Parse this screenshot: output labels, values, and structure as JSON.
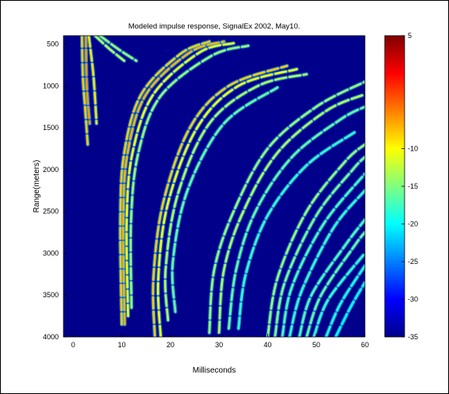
{
  "chart_data": {
    "type": "heatmap",
    "title": "Modeled impulse response, SignalEx 2002, May10.",
    "xlabel": "Milliseconds",
    "ylabel": "Range(meters)",
    "xlim": [
      -2,
      60
    ],
    "ylim": [
      400,
      4000
    ],
    "y_direction": "reversed",
    "x_ticks": [
      0,
      10,
      20,
      30,
      40,
      50,
      60
    ],
    "y_ticks": [
      500,
      1000,
      1500,
      2000,
      2500,
      3000,
      3500,
      4000
    ],
    "background_color": "#00008b",
    "colormap": "jet",
    "colorbar": {
      "range": [
        -35,
        5
      ],
      "ticks": [
        5,
        -10,
        -15,
        -20,
        -25,
        -30,
        -35
      ]
    },
    "series": [
      {
        "points": [
          [
            1.8,
            400
          ],
          [
            2.0,
            900
          ],
          [
            2.5,
            1300
          ],
          [
            3.0,
            1700
          ]
        ],
        "level": -8
      },
      {
        "points": [
          [
            2.6,
            400
          ],
          [
            2.8,
            1000
          ],
          [
            3.4,
            1450
          ]
        ],
        "level": -6
      },
      {
        "points": [
          [
            3.2,
            400
          ],
          [
            4.2,
            900
          ],
          [
            4.8,
            1450
          ]
        ],
        "level": -9
      },
      {
        "points": [
          [
            4.5,
            400
          ],
          [
            7.5,
            560
          ],
          [
            10.5,
            700
          ]
        ],
        "level": -13
      },
      {
        "points": [
          [
            5.5,
            400
          ],
          [
            9.5,
            570
          ],
          [
            13.0,
            700
          ]
        ],
        "level": -14
      },
      {
        "points": [
          [
            10.0,
            3850
          ],
          [
            9.7,
            2600
          ],
          [
            10.5,
            1800
          ],
          [
            14.0,
            1100
          ],
          [
            22.0,
            620
          ],
          [
            28.0,
            470
          ]
        ],
        "level": -8
      },
      {
        "points": [
          [
            10.6,
            3850
          ],
          [
            10.3,
            2600
          ],
          [
            11.2,
            1800
          ],
          [
            15.0,
            1100
          ],
          [
            24.0,
            600
          ],
          [
            31.0,
            470
          ]
        ],
        "level": -7
      },
      {
        "points": [
          [
            11.3,
            3750
          ],
          [
            11.0,
            2600
          ],
          [
            12.2,
            1800
          ],
          [
            16.5,
            1100
          ],
          [
            26.0,
            600
          ],
          [
            33.0,
            490
          ]
        ],
        "level": -10
      },
      {
        "points": [
          [
            12.0,
            3650
          ],
          [
            11.9,
            2600
          ],
          [
            13.4,
            1800
          ],
          [
            18.0,
            1120
          ],
          [
            28.5,
            640
          ],
          [
            36.0,
            520
          ]
        ],
        "level": -14
      },
      {
        "points": [
          [
            16.8,
            4000
          ],
          [
            16.5,
            3300
          ],
          [
            18.5,
            2400
          ],
          [
            24.0,
            1500
          ],
          [
            32.0,
            1000
          ],
          [
            44.0,
            760
          ]
        ],
        "level": -8
      },
      {
        "points": [
          [
            18.0,
            4000
          ],
          [
            17.5,
            3300
          ],
          [
            19.5,
            2400
          ],
          [
            25.5,
            1500
          ],
          [
            34.0,
            1000
          ],
          [
            46.0,
            800
          ]
        ],
        "level": -10
      },
      {
        "points": [
          [
            19.5,
            3800
          ],
          [
            19.0,
            3200
          ],
          [
            21.5,
            2300
          ],
          [
            28.0,
            1450
          ],
          [
            38.0,
            1000
          ],
          [
            48.0,
            860
          ]
        ],
        "level": -13
      },
      {
        "points": [
          [
            21.0,
            3700
          ],
          [
            20.5,
            3100
          ],
          [
            23.5,
            2250
          ],
          [
            31.0,
            1450
          ],
          [
            42.0,
            1020
          ]
        ],
        "level": -16
      },
      {
        "points": [
          [
            28.0,
            3950
          ],
          [
            29.0,
            3200
          ],
          [
            33.0,
            2500
          ],
          [
            40.0,
            1750
          ],
          [
            50.0,
            1250
          ],
          [
            60.0,
            950
          ]
        ],
        "level": -14
      },
      {
        "points": [
          [
            30.0,
            3950
          ],
          [
            31.0,
            3200
          ],
          [
            35.0,
            2500
          ],
          [
            42.0,
            1800
          ],
          [
            52.0,
            1300
          ],
          [
            60.0,
            1100
          ]
        ],
        "level": -13
      },
      {
        "points": [
          [
            32.0,
            3900
          ],
          [
            33.5,
            3200
          ],
          [
            37.5,
            2500
          ],
          [
            45.0,
            1850
          ],
          [
            55.0,
            1400
          ],
          [
            60.0,
            1250
          ]
        ],
        "level": -16
      },
      {
        "points": [
          [
            34.0,
            3900
          ],
          [
            35.5,
            3250
          ],
          [
            40.0,
            2550
          ],
          [
            48.0,
            1950
          ],
          [
            58.0,
            1550
          ]
        ],
        "level": -18
      },
      {
        "points": [
          [
            40.0,
            4000
          ],
          [
            42.0,
            3300
          ],
          [
            48.0,
            2500
          ],
          [
            56.0,
            1900
          ],
          [
            60.0,
            1700
          ]
        ],
        "level": -14
      },
      {
        "points": [
          [
            41.5,
            4000
          ],
          [
            43.5,
            3350
          ],
          [
            50.0,
            2550
          ],
          [
            57.5,
            2000
          ],
          [
            60.0,
            1850
          ]
        ],
        "level": -15
      },
      {
        "points": [
          [
            43.0,
            4000
          ],
          [
            45.0,
            3400
          ],
          [
            51.5,
            2650
          ],
          [
            60.0,
            2050
          ]
        ],
        "level": -17
      },
      {
        "points": [
          [
            44.5,
            4000
          ],
          [
            47.0,
            3450
          ],
          [
            53.5,
            2700
          ],
          [
            60.0,
            2250
          ]
        ],
        "level": -18
      },
      {
        "points": [
          [
            46.5,
            4000
          ],
          [
            49.0,
            3500
          ],
          [
            56.0,
            2900
          ],
          [
            60.0,
            2600
          ]
        ],
        "level": -17
      },
      {
        "points": [
          [
            48.0,
            4000
          ],
          [
            51.0,
            3500
          ],
          [
            58.0,
            2900
          ],
          [
            60.0,
            2750
          ]
        ],
        "level": -16
      },
      {
        "points": [
          [
            49.5,
            4000
          ],
          [
            52.5,
            3550
          ],
          [
            60.0,
            3000
          ]
        ],
        "level": -18
      },
      {
        "points": [
          [
            52.0,
            4000
          ],
          [
            55.0,
            3600
          ],
          [
            60.0,
            3150
          ]
        ],
        "level": -19
      },
      {
        "points": [
          [
            54.0,
            4000
          ],
          [
            57.0,
            3650
          ],
          [
            60.0,
            3350
          ]
        ],
        "level": -20
      }
    ]
  }
}
